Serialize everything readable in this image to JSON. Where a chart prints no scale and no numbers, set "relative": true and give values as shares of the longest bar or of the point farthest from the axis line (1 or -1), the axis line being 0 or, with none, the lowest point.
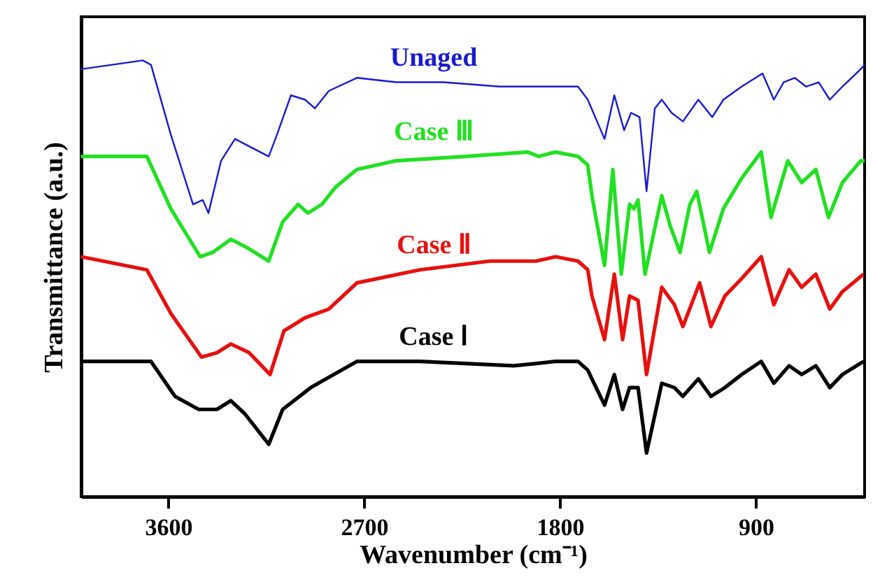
{
  "chart_data": {
    "type": "line",
    "relative": true,
    "xlabel": "Wavenumber (cm⁻¹)",
    "ylabel": "Transmittance (a.u.)",
    "xlim": [
      4000,
      400
    ],
    "xticks": [
      3600,
      2700,
      1800,
      900
    ],
    "grid": false,
    "marker": "none",
    "line_style": "solid",
    "series": [
      {
        "name": "Unaged",
        "color": "#1a1ad0",
        "x": [
          4000,
          3717,
          3679,
          3588,
          3486,
          3441,
          3415,
          3357,
          3293,
          3216,
          3138,
          3100,
          3036,
          2971,
          2926,
          2862,
          2733,
          2553,
          2335,
          2077,
          2013,
          1846,
          1717,
          1672,
          1595,
          1550,
          1505,
          1473,
          1434,
          1402,
          1364,
          1332,
          1287,
          1235,
          1164,
          1100,
          1049,
          965,
          869,
          817,
          772,
          721,
          669,
          611,
          560,
          502,
          418,
          400
        ],
        "values": [
          0.98,
          1.0,
          0.99,
          0.83,
          0.67,
          0.68,
          0.65,
          0.77,
          0.82,
          0.8,
          0.78,
          0.83,
          0.92,
          0.91,
          0.89,
          0.93,
          0.96,
          0.95,
          0.95,
          0.94,
          0.94,
          0.94,
          0.94,
          0.91,
          0.82,
          0.92,
          0.84,
          0.88,
          0.87,
          0.7,
          0.89,
          0.91,
          0.88,
          0.86,
          0.91,
          0.87,
          0.91,
          0.94,
          0.97,
          0.91,
          0.95,
          0.96,
          0.94,
          0.95,
          0.91,
          0.94,
          0.98,
          0.99
        ]
      },
      {
        "name": "Case Ⅲ",
        "color": "#22e022",
        "x": [
          4000,
          3698,
          3588,
          3453,
          3396,
          3312,
          3235,
          3138,
          3074,
          3003,
          2958,
          2894,
          2830,
          2733,
          2553,
          2232,
          1949,
          1897,
          1820,
          1717,
          1672,
          1653,
          1595,
          1557,
          1518,
          1480,
          1460,
          1441,
          1409,
          1332,
          1293,
          1248,
          1203,
          1171,
          1113,
          1049,
          965,
          875,
          830,
          753,
          689,
          624,
          566,
          502,
          418,
          400
        ],
        "values": [
          0.78,
          0.78,
          0.66,
          0.55,
          0.56,
          0.59,
          0.57,
          0.54,
          0.63,
          0.67,
          0.65,
          0.67,
          0.71,
          0.75,
          0.77,
          0.78,
          0.79,
          0.78,
          0.79,
          0.78,
          0.76,
          0.69,
          0.53,
          0.75,
          0.51,
          0.67,
          0.66,
          0.68,
          0.51,
          0.69,
          0.62,
          0.56,
          0.67,
          0.7,
          0.56,
          0.66,
          0.73,
          0.79,
          0.64,
          0.77,
          0.72,
          0.75,
          0.64,
          0.72,
          0.77,
          0.77
        ]
      },
      {
        "name": "Case Ⅱ",
        "color": "#e81010",
        "x": [
          4000,
          3698,
          3588,
          3447,
          3376,
          3312,
          3228,
          3132,
          3068,
          2971,
          2862,
          2733,
          2444,
          2122,
          1910,
          1820,
          1717,
          1672,
          1653,
          1595,
          1550,
          1512,
          1480,
          1441,
          1402,
          1332,
          1274,
          1235,
          1158,
          1106,
          1042,
          965,
          875,
          817,
          747,
          689,
          624,
          560,
          502,
          405
        ],
        "values": [
          0.55,
          0.52,
          0.42,
          0.32,
          0.33,
          0.35,
          0.33,
          0.28,
          0.38,
          0.41,
          0.43,
          0.49,
          0.52,
          0.54,
          0.54,
          0.55,
          0.54,
          0.52,
          0.46,
          0.36,
          0.51,
          0.36,
          0.46,
          0.45,
          0.28,
          0.48,
          0.44,
          0.39,
          0.49,
          0.39,
          0.46,
          0.5,
          0.55,
          0.44,
          0.52,
          0.48,
          0.51,
          0.43,
          0.47,
          0.51
        ]
      },
      {
        "name": "Case Ⅰ",
        "color": "#000000",
        "x": [
          4000,
          3717,
          3679,
          3569,
          3460,
          3376,
          3312,
          3248,
          3138,
          3074,
          2945,
          2733,
          2444,
          2013,
          1820,
          1717,
          1672,
          1653,
          1595,
          1550,
          1512,
          1480,
          1441,
          1402,
          1332,
          1274,
          1235,
          1164,
          1106,
          1042,
          965,
          875,
          817,
          747,
          689,
          624,
          560,
          502,
          405
        ],
        "values": [
          0.31,
          0.31,
          0.31,
          0.23,
          0.2,
          0.2,
          0.22,
          0.19,
          0.12,
          0.2,
          0.25,
          0.31,
          0.31,
          0.3,
          0.31,
          0.31,
          0.29,
          0.27,
          0.21,
          0.28,
          0.2,
          0.25,
          0.25,
          0.1,
          0.26,
          0.25,
          0.23,
          0.27,
          0.23,
          0.25,
          0.28,
          0.31,
          0.26,
          0.3,
          0.28,
          0.3,
          0.25,
          0.28,
          0.31
        ]
      }
    ]
  }
}
